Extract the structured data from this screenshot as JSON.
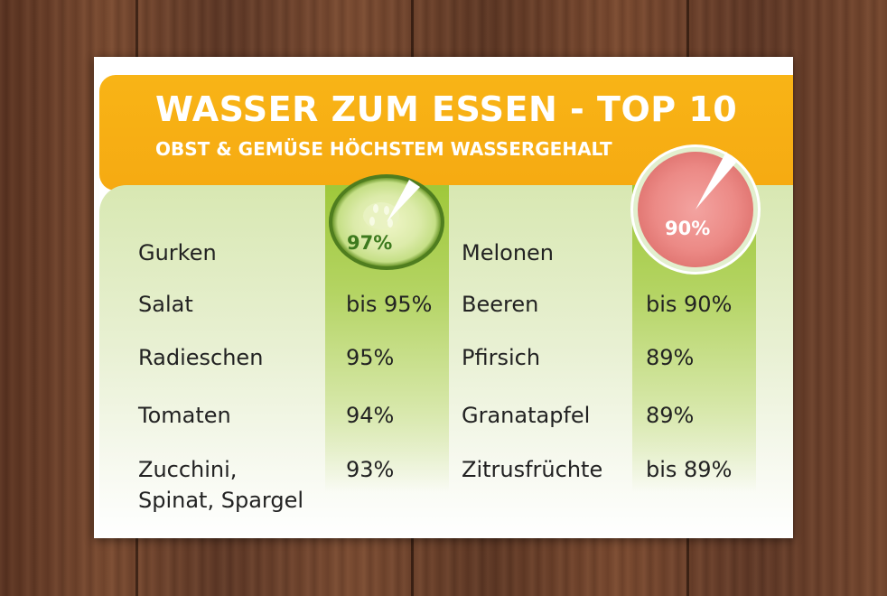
{
  "title": "WASSER ZUM ESSEN - TOP 10",
  "subtitle": "OBST & GEMÜSE HÖCHSTEM WASSERGEHALT",
  "left_column": [
    {
      "name": "Gurken",
      "value": "97%"
    },
    {
      "name": "Salat",
      "value": "bis 95%"
    },
    {
      "name": "Radieschen",
      "value": "95%"
    },
    {
      "name": "Tomaten",
      "value": "94%"
    },
    {
      "name": "Zucchini,",
      "name2": "Spinat, Spargel",
      "value": "93%"
    }
  ],
  "right_column": [
    {
      "name": "Melonen",
      "value": "90%"
    },
    {
      "name": "Beeren",
      "value": "bis 90%"
    },
    {
      "name": "Pfirsich",
      "value": "89%"
    },
    {
      "name": "Granatapfel",
      "value": "89%"
    },
    {
      "name": "Zitrusfrüchte",
      "value": "bis 89%"
    }
  ],
  "icons": {
    "cucumber": "cucumber-slice-icon",
    "melon": "watermelon-slice-icon"
  },
  "colors": {
    "banner": "#f8b416",
    "stripe": "#9fc83a",
    "text": "#222222",
    "cucumber_pct": "#3d7a1e",
    "melon_pct": "#ffffff"
  }
}
